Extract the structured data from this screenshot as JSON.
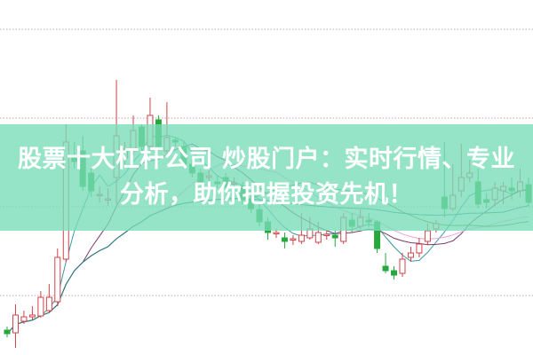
{
  "banner": {
    "title": "股票十大杠杆公司 炒股门户：实时行情、专业分析，助你把握投资先机！"
  },
  "colors": {
    "up": "#d0434a",
    "down": "#27a83c",
    "banner": "#98e6cc",
    "grid": "#b0b0b0",
    "ma": [
      "#3a9aa0",
      "#7a3a6a",
      "#e8a0e0",
      "#4a8a3a",
      "#2a7a8a"
    ]
  },
  "chart_data": {
    "type": "candlestick",
    "title": "",
    "xlabel": "",
    "ylabel": "",
    "ylim": [
      0,
      40
    ],
    "grid": true,
    "moving_average_periods": [
      5,
      10,
      20,
      30,
      60
    ],
    "candles": [
      [
        2.8,
        2.4,
        3.2,
        2.0
      ],
      [
        2.5,
        4.5,
        5.7,
        0.8
      ],
      [
        3.8,
        4.3,
        5.0,
        3.5
      ],
      [
        4.3,
        4.5,
        5.5,
        4.0
      ],
      [
        4.4,
        6.5,
        7.2,
        4.2
      ],
      [
        5.0,
        6.5,
        8.0,
        4.8
      ],
      [
        6.0,
        11.0,
        12.0,
        5.5
      ],
      [
        10.8,
        24.0,
        26.0,
        10.5
      ],
      [
        22.5,
        21.8,
        24.0,
        21.0
      ],
      [
        23.0,
        19.0,
        24.7,
        18.5
      ],
      [
        20.5,
        18.5,
        21.0,
        17.8
      ],
      [
        18.0,
        18.1,
        19.0,
        17.2
      ],
      [
        17.5,
        17.6,
        18.8,
        16.8
      ],
      [
        20.0,
        24.7,
        31.0,
        17.0
      ],
      [
        22.2,
        23.2,
        24.0,
        21.5
      ],
      [
        23.0,
        25.3,
        27.0,
        22.5
      ],
      [
        25.7,
        23.5,
        26.0,
        23.0
      ],
      [
        23.5,
        27.0,
        29.0,
        23.0
      ],
      [
        26.5,
        23.5,
        27.0,
        23.0
      ],
      [
        23.0,
        24.5,
        28.5,
        22.5
      ],
      [
        24.2,
        24.0,
        24.5,
        23.5
      ],
      [
        23.5,
        21.5,
        24.0,
        21.0
      ],
      [
        21.5,
        20.5,
        22.0,
        20.0
      ],
      [
        20.5,
        19.5,
        21.0,
        19.0
      ],
      [
        20.0,
        20.2,
        20.8,
        19.5
      ],
      [
        19.5,
        19.3,
        20.2,
        18.8
      ],
      [
        20.0,
        19.0,
        20.5,
        18.5
      ],
      [
        19.3,
        19.4,
        20.0,
        18.8
      ],
      [
        19.0,
        17.5,
        19.5,
        17.0
      ],
      [
        17.5,
        16.5,
        18.5,
        16.0
      ],
      [
        16.4,
        15.0,
        17.0,
        14.5
      ],
      [
        15.0,
        13.8,
        15.5,
        13.0
      ],
      [
        13.8,
        13.8,
        14.2,
        13.2
      ],
      [
        13.2,
        12.8,
        13.8,
        12.0
      ],
      [
        13.0,
        13.1,
        13.5,
        12.4
      ],
      [
        12.8,
        13.5,
        16.0,
        12.5
      ],
      [
        13.2,
        14.2,
        15.5,
        13.0
      ],
      [
        12.7,
        13.8,
        15.0,
        12.5
      ],
      [
        13.5,
        13.6,
        14.0,
        13.0
      ],
      [
        13.5,
        13.2,
        14.0,
        12.2
      ],
      [
        12.8,
        15.5,
        16.0,
        12.5
      ],
      [
        15.2,
        14.5,
        16.0,
        13.8
      ],
      [
        14.5,
        15.5,
        16.4,
        14.2
      ],
      [
        15.2,
        15.0,
        16.0,
        14.4
      ],
      [
        15.0,
        12.0,
        15.2,
        11.5
      ],
      [
        10.0,
        9.5,
        11.5,
        9.2
      ],
      [
        9.5,
        9.0,
        10.0,
        8.5
      ],
      [
        9.2,
        10.8,
        11.5,
        8.8
      ],
      [
        11.0,
        11.5,
        12.2,
        10.5
      ],
      [
        11.5,
        12.5,
        13.2,
        11.0
      ],
      [
        12.8,
        14.0,
        14.8,
        12.4
      ],
      [
        14.2,
        14.8,
        15.2,
        13.8
      ],
      [
        17.8,
        16.5,
        24.0,
        15.5
      ],
      [
        16.5,
        18.0,
        21.5,
        16.2
      ],
      [
        18.5,
        20.0,
        23.8,
        17.8
      ],
      [
        20.0,
        20.5,
        22.0,
        19.5
      ],
      [
        19.5,
        17.0,
        21.0,
        16.5
      ],
      [
        17.5,
        17.2,
        18.2,
        16.5
      ],
      [
        17.5,
        18.8,
        19.5,
        16.8
      ],
      [
        18.5,
        19.0,
        19.5,
        17.0
      ],
      [
        18.8,
        18.5,
        20.0,
        17.5
      ],
      [
        18.5,
        19.5,
        21.0,
        17.8
      ],
      [
        19.2,
        17.2,
        20.0,
        16.8
      ]
    ]
  }
}
